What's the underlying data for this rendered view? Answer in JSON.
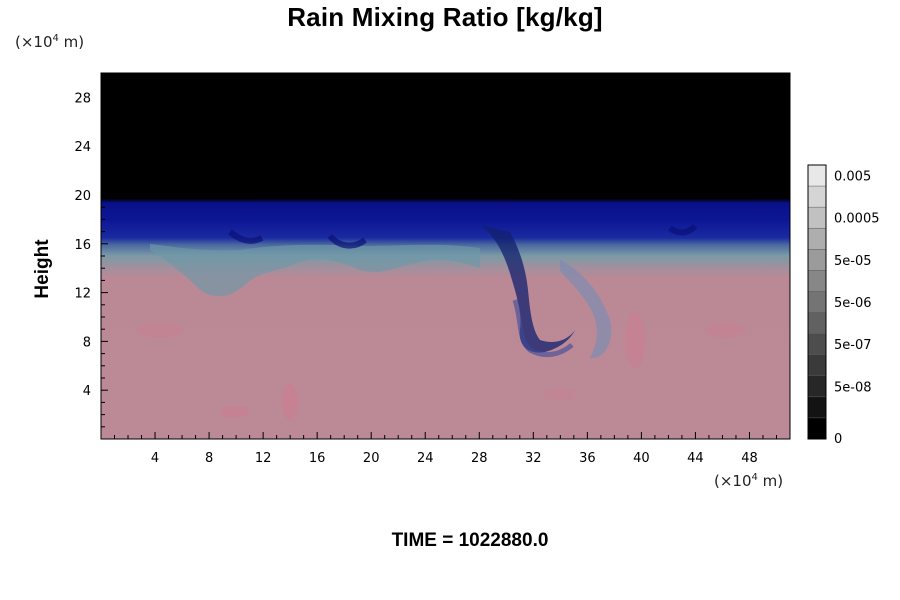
{
  "chart_data": {
    "type": "heatmap",
    "title": "Rain Mixing Ratio [kg/kg]",
    "ylabel": "Height",
    "x_unit": "(×10",
    "x_unit_exp": "4",
    "x_unit_tail": " m)",
    "y_unit": "(×10",
    "y_unit_exp": "4",
    "y_unit_tail": " m)",
    "xlim": [
      0,
      51
    ],
    "ylim": [
      0,
      30
    ],
    "x_ticks": [
      "4",
      "8",
      "12",
      "16",
      "20",
      "24",
      "28",
      "32",
      "36",
      "40",
      "44",
      "48"
    ],
    "x_tick_values": [
      4,
      8,
      12,
      16,
      20,
      24,
      28,
      32,
      36,
      40,
      44,
      48
    ],
    "y_ticks": [
      "4",
      "8",
      "12",
      "16",
      "20",
      "24",
      "28"
    ],
    "y_tick_values": [
      4,
      8,
      12,
      16,
      20,
      24,
      28
    ],
    "colorbar": {
      "labels": [
        "0.005",
        "0.0005",
        "5e-05",
        "5e-06",
        "5e-07",
        "5e-08",
        "0"
      ],
      "label_levels": [
        12,
        10,
        8,
        6,
        4,
        2,
        0
      ],
      "levels": 13
    },
    "bands": [
      {
        "name": "black-top",
        "y_min": 19.7,
        "y_max": 30,
        "color": "#000000"
      },
      {
        "name": "blue",
        "y_min": 16.3,
        "y_max": 19.7,
        "color": "#0a149a"
      },
      {
        "name": "transition",
        "y_min": 13.8,
        "y_max": 16.3,
        "color": "#6a8aa8"
      },
      {
        "name": "pink-bottom",
        "y_min": 0,
        "y_max": 13.8,
        "color": "#bb8996"
      }
    ],
    "annotation": "TIME = 1022880.0"
  }
}
